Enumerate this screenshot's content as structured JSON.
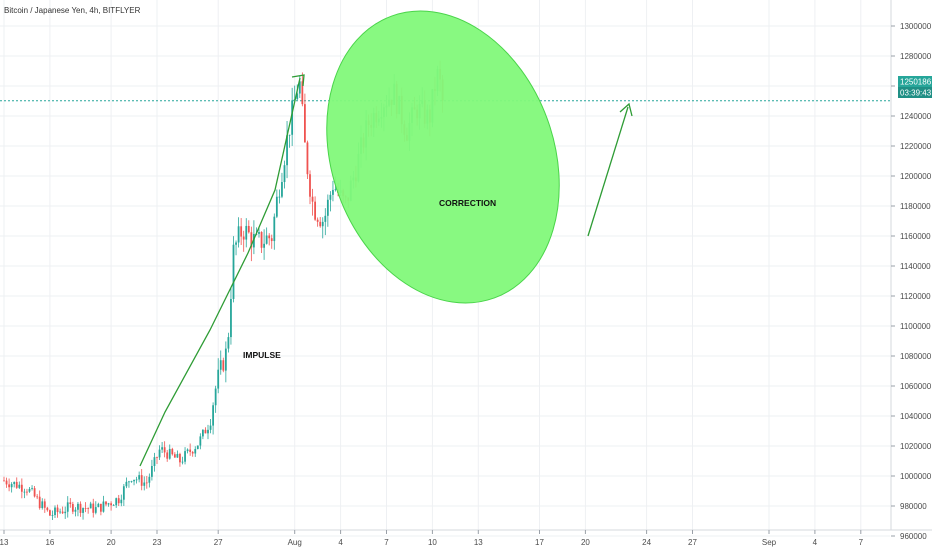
{
  "chart_data": {
    "type": "candlestick",
    "title": "Bitcoin / Japanese Yen, 4h, BITFLYER",
    "y_axis": {
      "range": [
        955000,
        1303000
      ],
      "ticks": [
        960000,
        980000,
        1000000,
        1020000,
        1040000,
        1060000,
        1080000,
        1100000,
        1120000,
        1140000,
        1160000,
        1180000,
        1200000,
        1220000,
        1240000,
        1260000,
        1280000,
        1300000
      ],
      "tick_labels": [
        "960000",
        "980000",
        "1000000",
        "1020000",
        "1040000",
        "1060000",
        "1080000",
        "1100000",
        "1120000",
        "1140000",
        "1160000",
        "1180000",
        "1200000",
        "1220000",
        "1240000",
        "1260000",
        "1280000",
        "1300000"
      ]
    },
    "x_axis": {
      "range_days": [
        0,
        60
      ],
      "ticks": [
        {
          "day": 0,
          "label": "13"
        },
        {
          "day": 3,
          "label": "16"
        },
        {
          "day": 7,
          "label": "20"
        },
        {
          "day": 10,
          "label": "23"
        },
        {
          "day": 14,
          "label": "27"
        },
        {
          "day": 19,
          "label": "Aug"
        },
        {
          "day": 22,
          "label": "4"
        },
        {
          "day": 25,
          "label": "7"
        },
        {
          "day": 28,
          "label": "10"
        },
        {
          "day": 31,
          "label": "13"
        },
        {
          "day": 35,
          "label": "17"
        },
        {
          "day": 38,
          "label": "20"
        },
        {
          "day": 42,
          "label": "24"
        },
        {
          "day": 45,
          "label": "27"
        },
        {
          "day": 50,
          "label": "Sep"
        },
        {
          "day": 53,
          "label": "4"
        },
        {
          "day": 56,
          "label": "7"
        }
      ]
    },
    "grid": true,
    "colors": {
      "up": "#26a69a",
      "down": "#ef5350",
      "ellipse_fill": "#82f97a",
      "ellipse_stroke": "#4ad44a",
      "arrow": "#2e9c35",
      "price_line": "#26a69a"
    },
    "price_marker": {
      "value": 1250186,
      "label": "1250186",
      "countdown": "03:39:43"
    },
    "annotations": {
      "impulse": "IMPULSE",
      "correction": "CORRECTION"
    },
    "anchors": [
      {
        "day": 0.0,
        "price": 997000
      },
      {
        "day": 1.5,
        "price": 992000
      },
      {
        "day": 3.0,
        "price": 974000
      },
      {
        "day": 4.5,
        "price": 980000
      },
      {
        "day": 6.0,
        "price": 978000
      },
      {
        "day": 7.5,
        "price": 985000
      },
      {
        "day": 8.3,
        "price": 1000000
      },
      {
        "day": 9.3,
        "price": 995000
      },
      {
        "day": 10.2,
        "price": 1018000
      },
      {
        "day": 11.5,
        "price": 1010000
      },
      {
        "day": 12.7,
        "price": 1022000
      },
      {
        "day": 13.4,
        "price": 1035000
      },
      {
        "day": 13.9,
        "price": 1062000
      },
      {
        "day": 14.6,
        "price": 1085000
      },
      {
        "day": 15.0,
        "price": 1150000
      },
      {
        "day": 15.6,
        "price": 1165000
      },
      {
        "day": 16.5,
        "price": 1155000
      },
      {
        "day": 17.5,
        "price": 1160000
      },
      {
        "day": 18.0,
        "price": 1195000
      },
      {
        "day": 18.6,
        "price": 1230000
      },
      {
        "day": 19.3,
        "price": 1265000
      },
      {
        "day": 19.7,
        "price": 1215000
      },
      {
        "day": 20.2,
        "price": 1180000
      },
      {
        "day": 20.9,
        "price": 1170000
      },
      {
        "day": 21.5,
        "price": 1195000
      },
      {
        "day": 22.3,
        "price": 1180000
      },
      {
        "day": 23.0,
        "price": 1205000
      },
      {
        "day": 23.8,
        "price": 1235000
      },
      {
        "day": 24.8,
        "price": 1250000
      },
      {
        "day": 25.5,
        "price": 1255000
      },
      {
        "day": 26.3,
        "price": 1230000
      },
      {
        "day": 27.0,
        "price": 1245000
      },
      {
        "day": 27.8,
        "price": 1238000
      },
      {
        "day": 28.3,
        "price": 1268000
      },
      {
        "day": 28.8,
        "price": 1250000
      }
    ]
  }
}
